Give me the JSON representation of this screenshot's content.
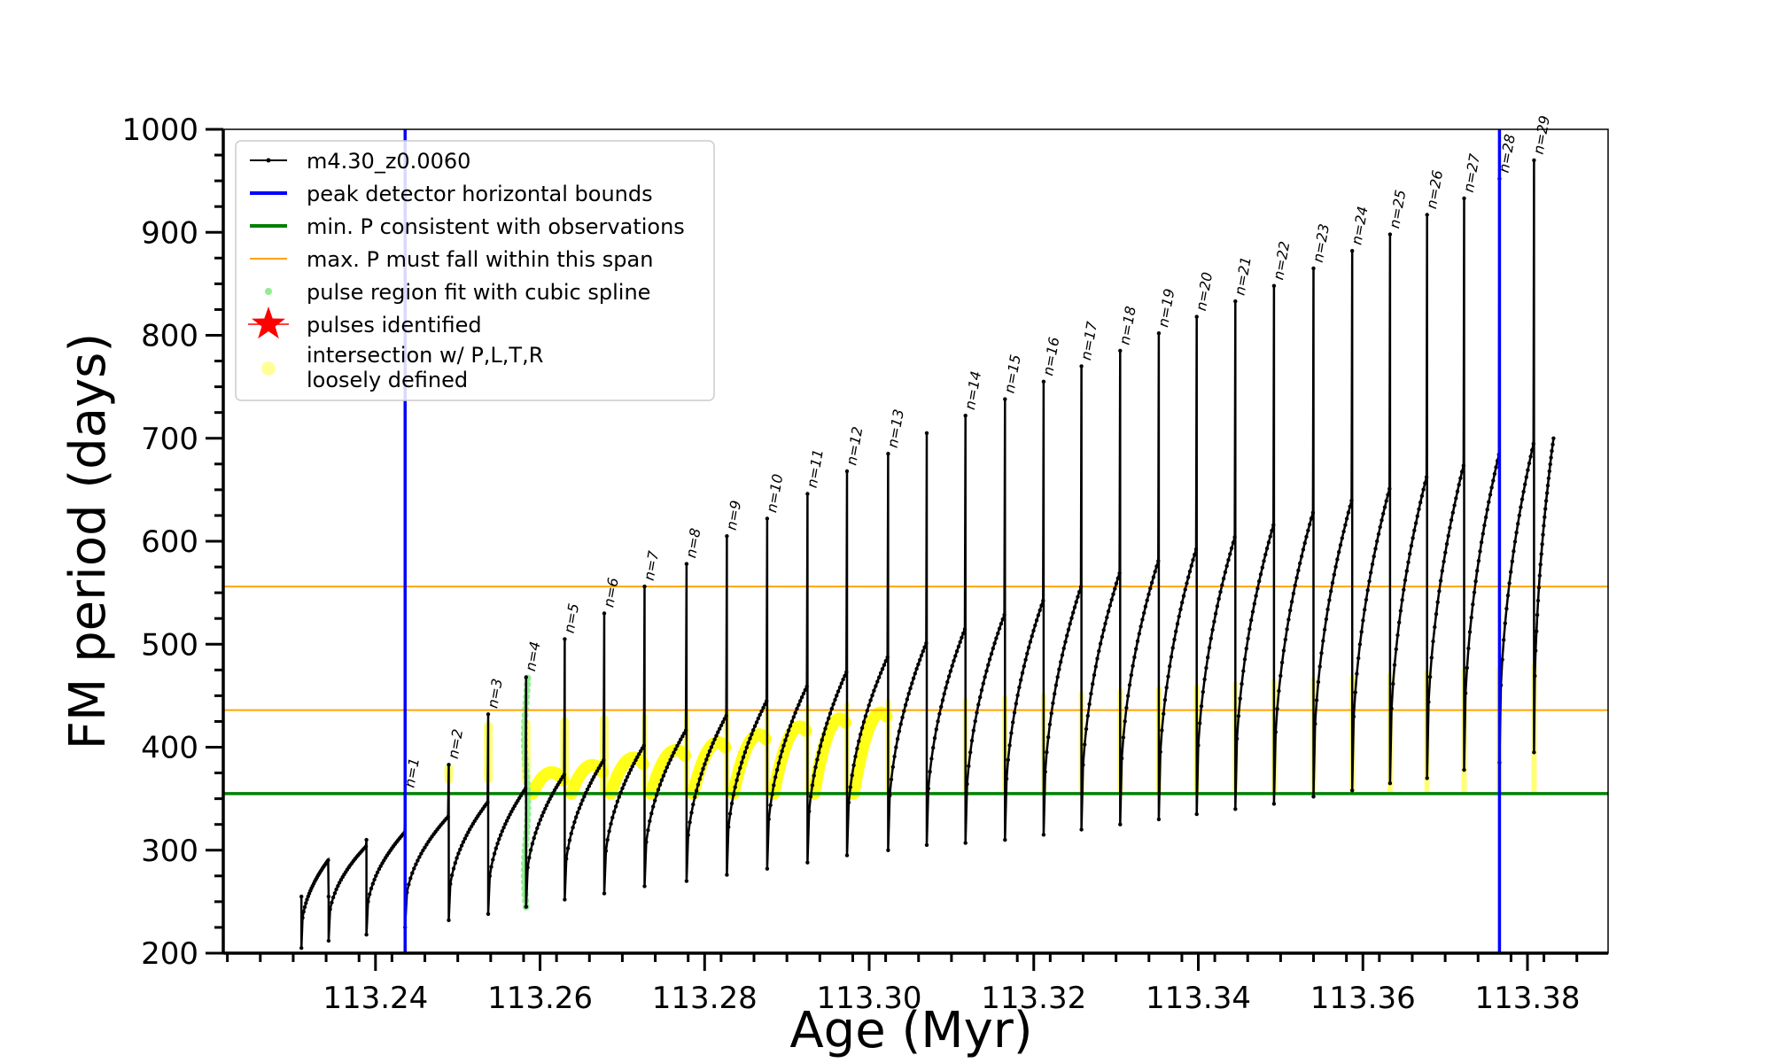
{
  "chart_data": {
    "type": "scatter",
    "title": "",
    "xlabel": "Age (Myr)",
    "ylabel": "FM period (days)",
    "xlim": [
      113.2215,
      113.3898
    ],
    "ylim": [
      200,
      1000
    ],
    "xticks": [
      113.24,
      113.26,
      113.28,
      113.3,
      113.32,
      113.34,
      113.36,
      113.38
    ],
    "xtick_labels": [
      "113.24",
      "113.26",
      "113.28",
      "113.30",
      "113.32",
      "113.34",
      "113.36",
      "113.38"
    ],
    "yticks": [
      200,
      300,
      400,
      500,
      600,
      700,
      800,
      900,
      1000
    ],
    "ytick_labels": [
      "200",
      "300",
      "400",
      "500",
      "600",
      "700",
      "800",
      "900",
      "1000"
    ],
    "grid": false,
    "legend_position": "top-left",
    "legend": [
      {
        "label": "m4.30_z0.0060",
        "marker": "line-dot",
        "color": "#000000"
      },
      {
        "label": "peak detector horizontal bounds",
        "marker": "line",
        "color": "#0000ff"
      },
      {
        "label": "min. P consistent with observations",
        "marker": "line",
        "color": "#008000"
      },
      {
        "label": "max. P must fall within this span",
        "marker": "thin-line",
        "color": "#ffa500"
      },
      {
        "label": "pulse region fit with cubic spline",
        "marker": "dot",
        "color": "#90ee90"
      },
      {
        "label": "pulses identified",
        "marker": "star",
        "color": "#ff0000"
      },
      {
        "label_lines": [
          "intersection w/ P,L,T,R",
          "loosely defined"
        ],
        "marker": "circle",
        "color": "#ffff99"
      }
    ],
    "vlines": [
      {
        "x": 113.2436,
        "color": "#0000ff",
        "role": "peak detector horizontal bounds"
      },
      {
        "x": 113.3766,
        "color": "#0000ff",
        "role": "peak detector horizontal bounds"
      }
    ],
    "hlines": [
      {
        "y": 355,
        "color": "#008000",
        "role": "min. P consistent with observations"
      },
      {
        "y": 436,
        "color": "#ffa500",
        "role": "max. P must fall within this span"
      },
      {
        "y": 556,
        "color": "#ffa500",
        "role": "max. P must fall within this span"
      }
    ],
    "pulses": [
      {
        "label": "n=1",
        "x": 113.2436,
        "peak": 355
      },
      {
        "label": "n=2",
        "x": 113.2489,
        "peak": 383
      },
      {
        "label": "n=3",
        "x": 113.2537,
        "peak": 432
      },
      {
        "label": "n=4",
        "x": 113.2583,
        "peak": 468
      },
      {
        "label": "n=5",
        "x": 113.263,
        "peak": 505
      },
      {
        "label": "n=6",
        "x": 113.2678,
        "peak": 530
      },
      {
        "label": "n=7",
        "x": 113.2727,
        "peak": 556
      },
      {
        "label": "n=8",
        "x": 113.2778,
        "peak": 578
      },
      {
        "label": "n=9",
        "x": 113.2827,
        "peak": 605
      },
      {
        "label": "n=10",
        "x": 113.2876,
        "peak": 622
      },
      {
        "label": "n=11",
        "x": 113.2925,
        "peak": 646
      },
      {
        "label": "n=12",
        "x": 113.2973,
        "peak": 668
      },
      {
        "label": "n=13",
        "x": 113.3023,
        "peak": 685
      },
      {
        "label": "n=14",
        "x": 113.3117,
        "peak": 722
      },
      {
        "label": "n=15",
        "x": 113.3165,
        "peak": 738
      },
      {
        "label": "n=16",
        "x": 113.3212,
        "peak": 755
      },
      {
        "label": "n=17",
        "x": 113.3258,
        "peak": 770
      },
      {
        "label": "n=18",
        "x": 113.3305,
        "peak": 785
      },
      {
        "label": "n=19",
        "x": 113.3352,
        "peak": 802
      },
      {
        "label": "n=20",
        "x": 113.3398,
        "peak": 818
      },
      {
        "label": "n=21",
        "x": 113.3445,
        "peak": 833
      },
      {
        "label": "n=22",
        "x": 113.3492,
        "peak": 848
      },
      {
        "label": "n=23",
        "x": 113.354,
        "peak": 865
      },
      {
        "label": "n=24",
        "x": 113.3587,
        "peak": 882
      },
      {
        "label": "n=25",
        "x": 113.3633,
        "peak": 898
      },
      {
        "label": "n=26",
        "x": 113.3678,
        "peak": 917
      },
      {
        "label": "n=27",
        "x": 113.3723,
        "peak": 933
      },
      {
        "label": "n=28",
        "x": 113.3766,
        "peak": 952
      },
      {
        "label": "n=29",
        "x": 113.3808,
        "peak": 970
      }
    ],
    "unlabeled_spikes": [
      {
        "x": 113.2343,
        "peak": 255
      },
      {
        "x": 113.2389,
        "peak": 310
      },
      {
        "x": 113.307,
        "peak": 705
      }
    ],
    "series_end": {
      "x": 113.3832,
      "y": 700
    }
  }
}
